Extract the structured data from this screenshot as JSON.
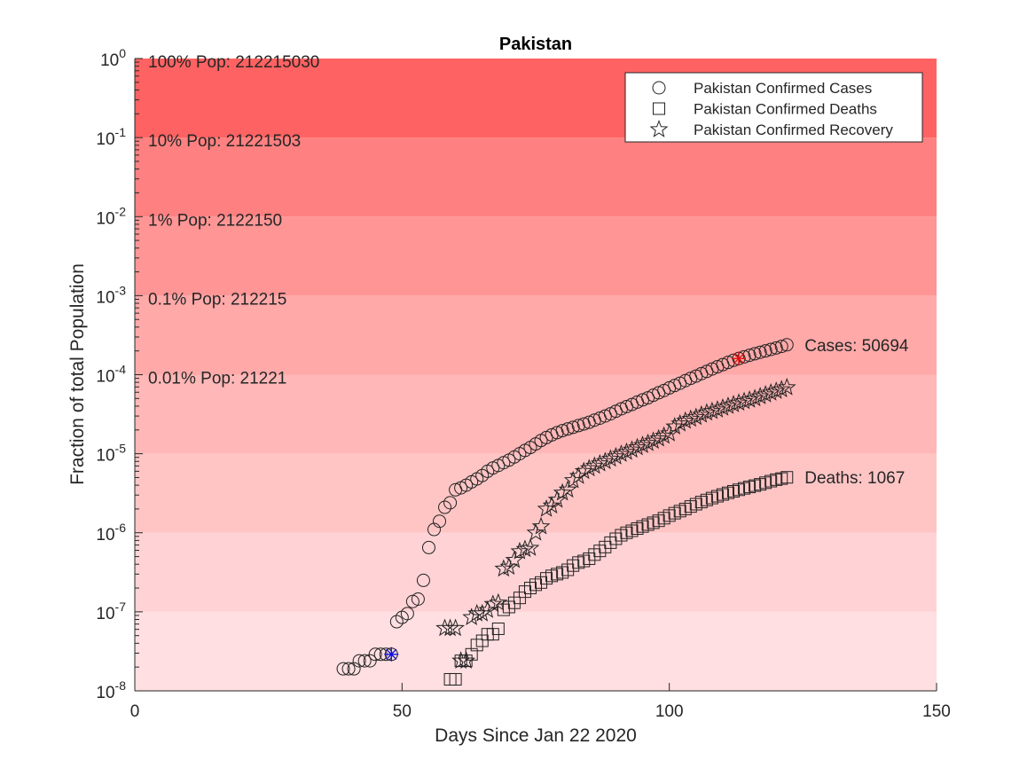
{
  "chart_data": {
    "type": "scatter",
    "title": "Pakistan",
    "xlabel": "Days Since Jan 22 2020",
    "ylabel": "Fraction of total Population",
    "xlim": [
      0,
      150
    ],
    "ylim": [
      1e-08,
      1
    ],
    "yscale": "log",
    "xticks": [
      0,
      50,
      100,
      150
    ],
    "yticks": [
      {
        "value": 1e-08,
        "base": "10",
        "exp": "-8"
      },
      {
        "value": 1e-07,
        "base": "10",
        "exp": "-7"
      },
      {
        "value": 1e-06,
        "base": "10",
        "exp": "-6"
      },
      {
        "value": 1e-05,
        "base": "10",
        "exp": "-5"
      },
      {
        "value": 0.0001,
        "base": "10",
        "exp": "-4"
      },
      {
        "value": 0.001,
        "base": "10",
        "exp": "-3"
      },
      {
        "value": 0.01,
        "base": "10",
        "exp": "-2"
      },
      {
        "value": 0.1,
        "base": "10",
        "exp": "-1"
      },
      {
        "value": 1,
        "base": "10",
        "exp": "0"
      }
    ],
    "grid": false,
    "legend_position": "top-right",
    "bands": [
      {
        "low": 1e-08,
        "high": 1e-07,
        "color": "#ffdfe1"
      },
      {
        "low": 1e-07,
        "high": 1e-06,
        "color": "#ffd3d5"
      },
      {
        "low": 1e-06,
        "high": 1e-05,
        "color": "#ffc5c5"
      },
      {
        "low": 1e-05,
        "high": 0.0001,
        "color": "#ffb7b7"
      },
      {
        "low": 0.0001,
        "high": 0.001,
        "color": "#ffa9a9"
      },
      {
        "low": 0.001,
        "high": 0.01,
        "color": "#ff9595"
      },
      {
        "low": 0.01,
        "high": 0.1,
        "color": "#ff8080"
      },
      {
        "low": 0.1,
        "high": 1,
        "color": "#ff6262"
      }
    ],
    "population_labels": [
      {
        "text": "100% Pop: 212215030",
        "value": 1
      },
      {
        "text": "10% Pop: 21221503",
        "value": 0.1
      },
      {
        "text": "1% Pop: 2122150",
        "value": 0.01
      },
      {
        "text": "0.1% Pop: 212215",
        "value": 0.001
      },
      {
        "text": "0.01% Pop: 21221",
        "value": 0.0001
      }
    ],
    "series": [
      {
        "name": "Pakistan Confirmed Cases",
        "marker": "circle",
        "end_label": "Cases: 50694",
        "x": [
          39,
          40,
          41,
          42,
          43,
          44,
          45,
          46,
          47,
          48,
          49,
          50,
          51,
          52,
          53,
          54,
          55,
          56,
          57,
          58,
          59,
          60,
          61,
          62,
          63,
          64,
          65,
          66,
          67,
          68,
          69,
          70,
          71,
          72,
          73,
          74,
          75,
          76,
          77,
          78,
          79,
          80,
          81,
          82,
          83,
          84,
          85,
          86,
          87,
          88,
          89,
          90,
          91,
          92,
          93,
          94,
          95,
          96,
          97,
          98,
          99,
          100,
          101,
          102,
          103,
          104,
          105,
          106,
          107,
          108,
          109,
          110,
          111,
          112,
          113,
          114,
          115,
          116,
          117,
          118,
          119,
          120,
          121,
          122
        ],
        "y": [
          1.9e-08,
          1.9e-08,
          1.9e-08,
          2.4e-08,
          2.4e-08,
          2.4e-08,
          2.9e-08,
          2.9e-08,
          2.9e-08,
          2.9e-08,
          7.5e-08,
          8.5e-08,
          9.5e-08,
          1.35e-07,
          1.45e-07,
          2.5e-07,
          6.5e-07,
          1.1e-06,
          1.4e-06,
          2.1e-06,
          2.4e-06,
          3.5e-06,
          3.7e-06,
          4e-06,
          4.4e-06,
          4.8e-06,
          5.3e-06,
          6e-06,
          6.6e-06,
          7.1e-06,
          7.7e-06,
          8.3e-06,
          9.1e-06,
          1e-05,
          1.1e-05,
          1.2e-05,
          1.33e-05,
          1.47e-05,
          1.6e-05,
          1.73e-05,
          1.85e-05,
          1.96e-05,
          2.06e-05,
          2.16e-05,
          2.27e-05,
          2.38e-05,
          2.5e-05,
          2.66e-05,
          2.82e-05,
          3e-05,
          3.2e-05,
          3.45e-05,
          3.7e-05,
          3.95e-05,
          4.2e-05,
          4.5e-05,
          4.8e-05,
          5.1e-05,
          5.5e-05,
          5.9e-05,
          6.3e-05,
          6.8e-05,
          7.3e-05,
          7.8e-05,
          8.4e-05,
          9e-05,
          9.6e-05,
          0.000103,
          0.00011,
          0.000118,
          0.000126,
          0.000134,
          0.000143,
          0.000152,
          0.00016,
          0.000168,
          0.000176,
          0.000184,
          0.000192,
          0.0002,
          0.000209,
          0.000218,
          0.000228,
          0.000239
        ]
      },
      {
        "name": "Pakistan Confirmed Deaths",
        "marker": "square",
        "end_label": "Deaths: 1067",
        "x": [
          59,
          60,
          61,
          62,
          63,
          64,
          65,
          66,
          67,
          68,
          69,
          70,
          71,
          72,
          73,
          74,
          75,
          76,
          77,
          78,
          79,
          80,
          81,
          82,
          83,
          84,
          85,
          86,
          87,
          88,
          89,
          90,
          91,
          92,
          93,
          94,
          95,
          96,
          97,
          98,
          99,
          100,
          101,
          102,
          103,
          104,
          105,
          106,
          107,
          108,
          109,
          110,
          111,
          112,
          113,
          114,
          115,
          116,
          117,
          118,
          119,
          120,
          121,
          122
        ],
        "y": [
          1.4e-08,
          1.4e-08,
          2.4e-08,
          2.4e-08,
          2.9e-08,
          3.8e-08,
          4.3e-08,
          5.2e-08,
          5.2e-08,
          6.1e-08,
          1.06e-07,
          1.15e-07,
          1.3e-07,
          1.5e-07,
          1.8e-07,
          2e-07,
          2.2e-07,
          2.35e-07,
          2.65e-07,
          2.85e-07,
          3e-07,
          3.15e-07,
          3.4e-07,
          3.85e-07,
          4.2e-07,
          4.4e-07,
          4.7e-07,
          5.3e-07,
          5.9e-07,
          6.6e-07,
          7.5e-07,
          8.4e-07,
          9.3e-07,
          1e-06,
          1.06e-06,
          1.13e-06,
          1.2e-06,
          1.27e-06,
          1.34e-06,
          1.42e-06,
          1.53e-06,
          1.65e-06,
          1.77e-06,
          1.88e-06,
          2e-06,
          2.15e-06,
          2.3e-06,
          2.45e-06,
          2.6e-06,
          2.75e-06,
          2.9e-06,
          3.05e-06,
          3.2e-06,
          3.35e-06,
          3.5e-06,
          3.65e-06,
          3.8e-06,
          3.95e-06,
          4.1e-06,
          4.3e-06,
          4.5e-06,
          4.7e-06,
          4.85e-06,
          5.03e-06
        ]
      },
      {
        "name": "Pakistan Confirmed Recovery",
        "marker": "star",
        "x": [
          58,
          59,
          60,
          61,
          62,
          63,
          64,
          65,
          66,
          67,
          68,
          69,
          70,
          71,
          72,
          73,
          74,
          75,
          76,
          77,
          78,
          79,
          80,
          81,
          82,
          83,
          84,
          85,
          86,
          87,
          88,
          89,
          90,
          91,
          92,
          93,
          94,
          95,
          96,
          97,
          98,
          99,
          100,
          101,
          102,
          103,
          104,
          105,
          106,
          107,
          108,
          109,
          110,
          111,
          112,
          113,
          114,
          115,
          116,
          117,
          118,
          119,
          120,
          121,
          122
        ],
        "y": [
          6.2e-08,
          6.2e-08,
          6.2e-08,
          2.4e-08,
          2.4e-08,
          8.5e-08,
          9.5e-08,
          9.5e-08,
          1.05e-07,
          1.25e-07,
          1.3e-07,
          3.5e-07,
          3.7e-07,
          4.5e-07,
          5.8e-07,
          6.2e-07,
          6.4e-07,
          1e-06,
          1.2e-06,
          2e-06,
          2.2e-06,
          2.6e-06,
          3.2e-06,
          3.5e-06,
          4.6e-06,
          5.2e-06,
          6e-06,
          6.5e-06,
          7e-06,
          7.5e-06,
          8e-06,
          8.6e-06,
          9.2e-06,
          9.9e-06,
          1.05e-05,
          1.12e-05,
          1.2e-05,
          1.28e-05,
          1.36e-05,
          1.45e-05,
          1.55e-05,
          1.68e-05,
          1.8e-05,
          2.2e-05,
          2.4e-05,
          2.6e-05,
          2.75e-05,
          2.9e-05,
          3.1e-05,
          3.3e-05,
          3.45e-05,
          3.6e-05,
          3.8e-05,
          4e-05,
          4.2e-05,
          4.4e-05,
          4.6e-05,
          4.8e-05,
          5e-05,
          5.3e-05,
          5.6e-05,
          5.9e-05,
          6.2e-05,
          6.5e-05,
          6.9e-05
        ]
      }
    ],
    "markers": [
      {
        "x": 48,
        "y": 2.9e-08,
        "color": "#1010e0",
        "marker": "asterisk"
      },
      {
        "x": 113,
        "y": 0.00016,
        "color": "#e01010",
        "marker": "asterisk"
      }
    ]
  }
}
